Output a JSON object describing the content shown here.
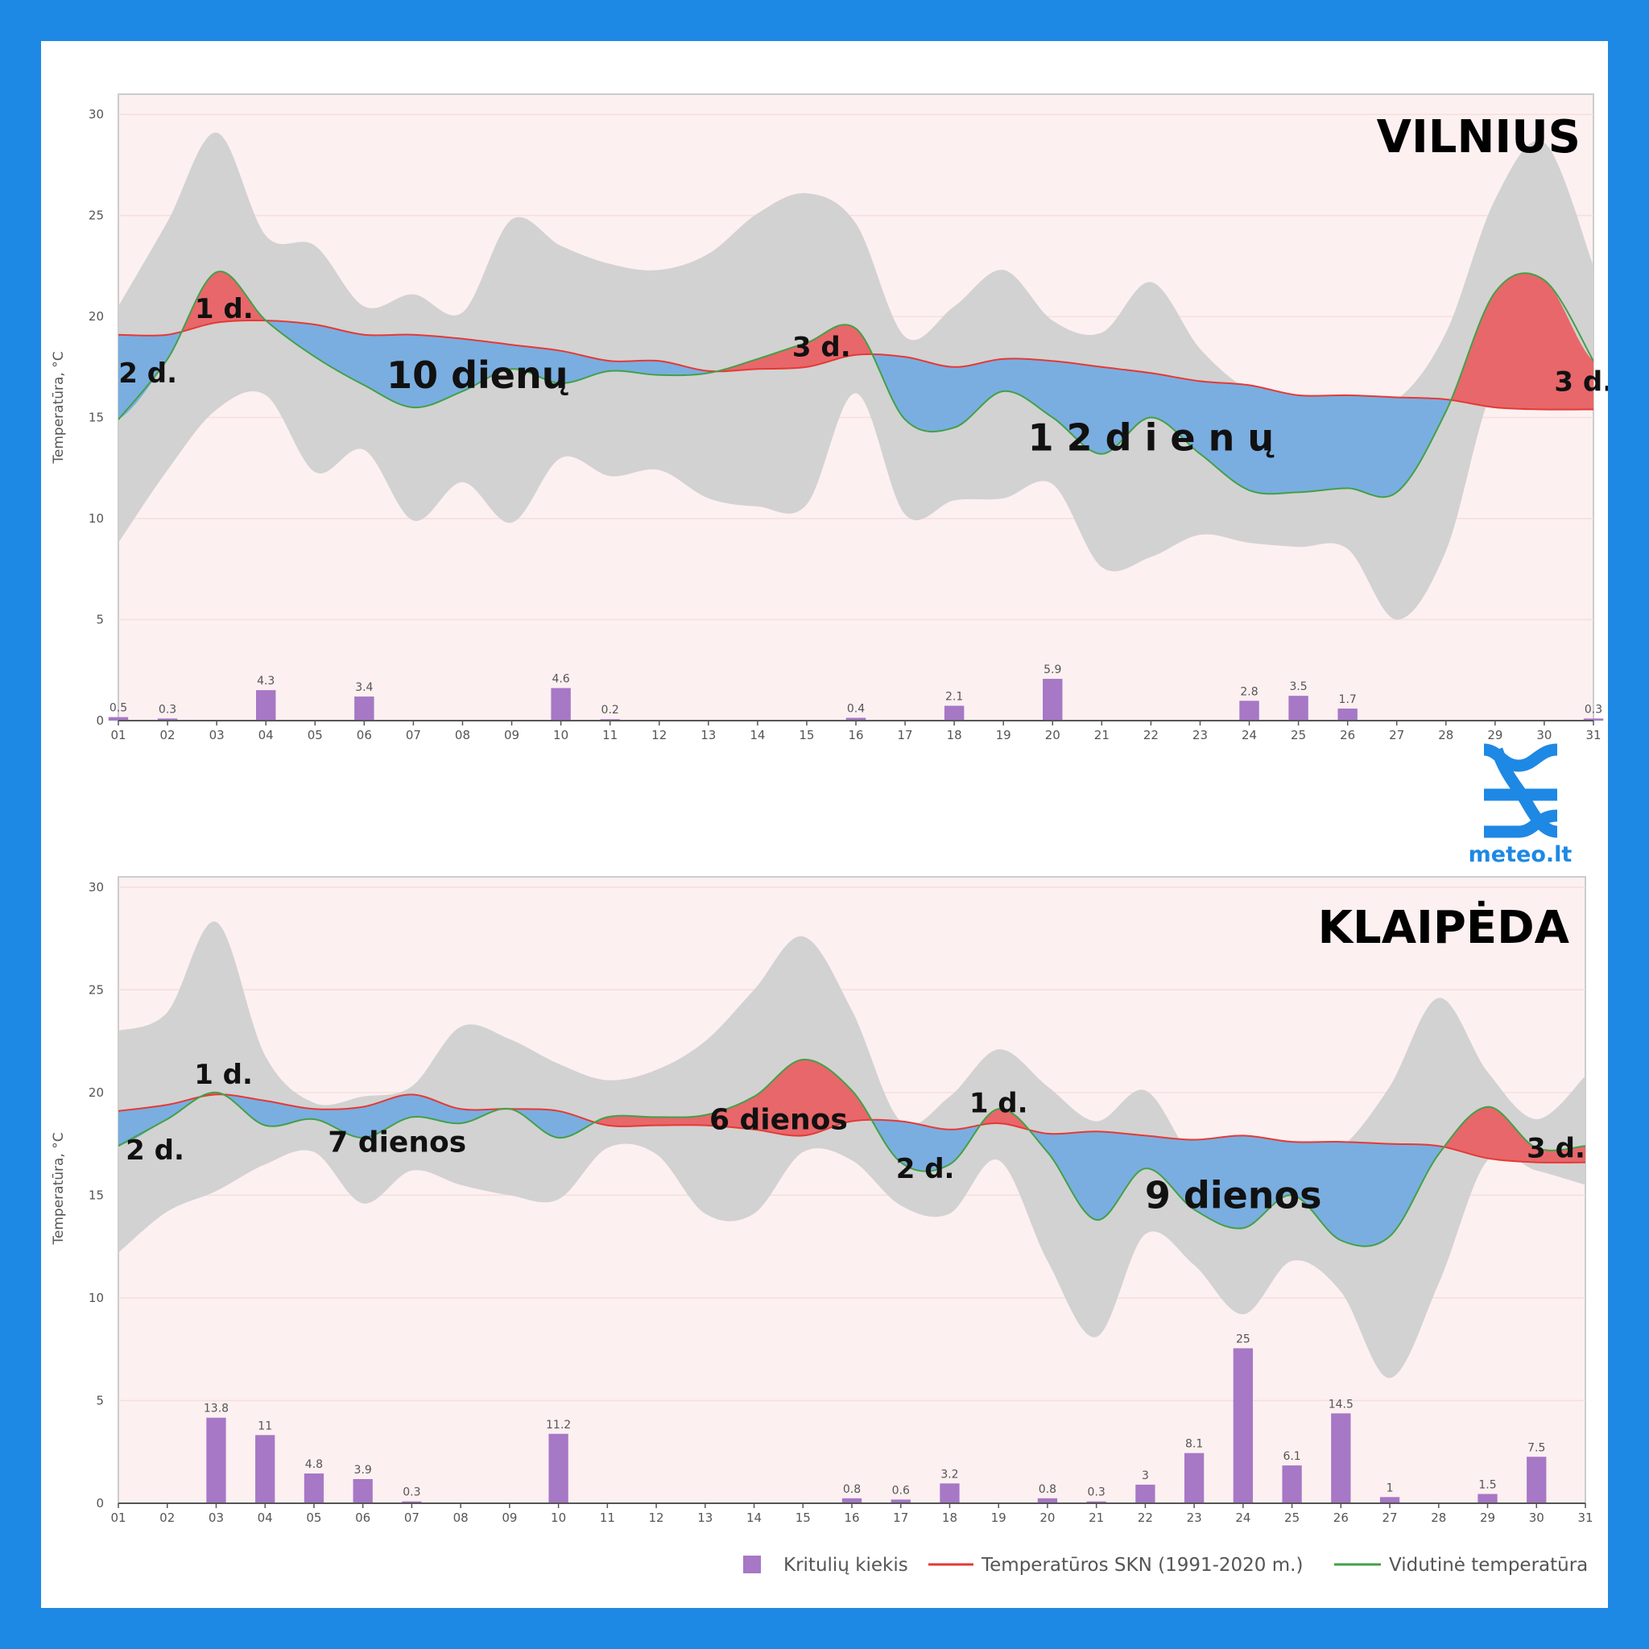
{
  "logo": {
    "text": "meteo.lt",
    "icon": "meteo-logo-icon",
    "color": "#1e88e5"
  },
  "legend": {
    "precip": "Kritulių kiekis",
    "norm": "Temperatūros SKN (1991-2020 m.)",
    "mean": "Vidutinė temperatūra"
  },
  "colors": {
    "frame": "#1e88e5",
    "plot_bg": "#fdf0f1",
    "range": "#d0d0d0",
    "warm": "#e8676a",
    "cold": "#7aaee0",
    "norm_line": "#e53935",
    "mean_line": "#43a047",
    "bar": "#a678c5"
  },
  "chart_data": [
    {
      "type": "area",
      "title": "VILNIUS",
      "ylabel": "Temperatūra, °C",
      "ylim": [
        0,
        31
      ],
      "yticks": [
        0,
        5,
        10,
        15,
        20,
        25,
        30
      ],
      "grid": true,
      "categories": [
        "01",
        "02",
        "03",
        "04",
        "05",
        "06",
        "07",
        "08",
        "09",
        "10",
        "11",
        "12",
        "13",
        "14",
        "15",
        "16",
        "17",
        "18",
        "19",
        "20",
        "21",
        "22",
        "23",
        "24",
        "25",
        "26",
        "27",
        "28",
        "29",
        "30",
        "31"
      ],
      "series": [
        {
          "name": "Vidutinė temperatūra",
          "type": "line",
          "values": [
            14.9,
            17.9,
            22.2,
            19.8,
            18.0,
            16.6,
            15.5,
            16.3,
            17.4,
            16.7,
            17.3,
            17.1,
            17.2,
            17.9,
            18.7,
            19.4,
            14.9,
            14.5,
            16.3,
            15.0,
            13.2,
            15.0,
            13.2,
            11.4,
            11.3,
            11.5,
            11.3,
            15.3,
            21.2,
            21.8,
            17.8
          ]
        },
        {
          "name": "Temperatūros SKN (1991-2020 m.)",
          "type": "line",
          "values": [
            19.1,
            19.1,
            19.7,
            19.8,
            19.6,
            19.1,
            19.1,
            18.9,
            18.6,
            18.3,
            17.8,
            17.8,
            17.3,
            17.4,
            17.5,
            18.1,
            18.0,
            17.5,
            17.9,
            17.8,
            17.5,
            17.2,
            16.8,
            16.6,
            16.1,
            16.1,
            16.0,
            15.9,
            15.5,
            15.4,
            15.4
          ]
        },
        {
          "name": "range",
          "type": "arearange",
          "high": [
            20.5,
            24.7,
            29.1,
            24.0,
            23.5,
            20.5,
            21.1,
            20.2,
            24.8,
            23.5,
            22.6,
            22.3,
            23.1,
            25.1,
            26.1,
            24.6,
            19.0,
            20.5,
            22.3,
            19.8,
            19.2,
            21.7,
            18.4,
            16.3,
            15.3,
            15.8,
            15.9,
            19.2,
            25.8,
            28.6,
            22.5
          ],
          "low": [
            8.8,
            12.4,
            15.4,
            16.1,
            12.3,
            13.4,
            9.9,
            11.8,
            9.8,
            13.0,
            12.1,
            12.4,
            11.0,
            10.6,
            10.7,
            16.2,
            10.2,
            10.9,
            11.0,
            11.7,
            7.6,
            8.1,
            9.2,
            8.8,
            8.6,
            8.5,
            5.0,
            8.4,
            16.6,
            16.1,
            16.3
          ]
        },
        {
          "name": "Kritulių kiekis",
          "type": "bar",
          "values": [
            0.5,
            0.3,
            0,
            4.3,
            0,
            3.4,
            0,
            0,
            0,
            4.6,
            0.2,
            0,
            0,
            0,
            0,
            0.4,
            0,
            2.1,
            0,
            5.9,
            0,
            0,
            0,
            2.8,
            3.5,
            1.7,
            0,
            0,
            0,
            0,
            0.3
          ],
          "labels": [
            "0.5",
            "0.3",
            "",
            "4.3",
            "",
            "3.4",
            "",
            "",
            "",
            "4.6",
            "0.2",
            "",
            "",
            "",
            "",
            "0.4",
            "",
            "2.1",
            "",
            "5.9",
            "",
            "",
            "",
            "2.8",
            "3.5",
            "1.7",
            "",
            "",
            "",
            "",
            "0.3"
          ]
        }
      ],
      "annotations": [
        {
          "text": "2 d.",
          "x": 1.6,
          "y": 17.2,
          "size": 34
        },
        {
          "text": "1 d.",
          "x": 3.15,
          "y": 20.4,
          "size": 34
        },
        {
          "text": "10 dienų",
          "x": 8.3,
          "y": 17.1,
          "size": 46
        },
        {
          "text": "3 d.",
          "x": 15.3,
          "y": 18.5,
          "size": 34
        },
        {
          "text": "1 2  d i e n ų",
          "x": 22.0,
          "y": 14.0,
          "size": 46
        },
        {
          "text": "3 d.",
          "x": 30.8,
          "y": 16.8,
          "size": 34
        }
      ]
    },
    {
      "type": "area",
      "title": "KLAIPĖDA",
      "ylabel": "Temperatūra, °C",
      "ylim": [
        0,
        30.5
      ],
      "yticks": [
        0,
        5,
        10,
        15,
        20,
        25,
        30
      ],
      "grid": true,
      "categories": [
        "01",
        "02",
        "03",
        "04",
        "05",
        "06",
        "07",
        "08",
        "09",
        "10",
        "11",
        "12",
        "13",
        "14",
        "15",
        "16",
        "17",
        "18",
        "19",
        "20",
        "21",
        "22",
        "23",
        "24",
        "25",
        "26",
        "27",
        "28",
        "29",
        "30",
        "31"
      ],
      "series": [
        {
          "name": "Vidutinė temperatūra",
          "type": "line",
          "values": [
            17.4,
            18.7,
            20.0,
            18.4,
            18.7,
            17.8,
            18.8,
            18.5,
            19.2,
            17.8,
            18.8,
            18.8,
            18.9,
            19.8,
            21.6,
            20.1,
            16.6,
            16.5,
            19.2,
            17.1,
            13.8,
            16.3,
            14.3,
            13.4,
            15.0,
            12.8,
            13.0,
            17.0,
            19.3,
            17.3,
            17.4
          ]
        },
        {
          "name": "Temperatūros SKN (1991-2020 m.)",
          "type": "line",
          "values": [
            19.1,
            19.4,
            19.9,
            19.6,
            19.2,
            19.3,
            19.9,
            19.2,
            19.2,
            19.1,
            18.4,
            18.4,
            18.4,
            18.2,
            17.9,
            18.6,
            18.6,
            18.2,
            18.5,
            18.0,
            18.1,
            17.9,
            17.7,
            17.9,
            17.6,
            17.6,
            17.5,
            17.4,
            16.8,
            16.6,
            16.6
          ]
        },
        {
          "name": "range",
          "type": "arearange",
          "high": [
            23.0,
            23.9,
            28.3,
            21.8,
            19.5,
            19.8,
            20.3,
            23.2,
            22.6,
            21.4,
            20.6,
            21.1,
            22.5,
            25.0,
            27.6,
            24.0,
            18.6,
            19.8,
            22.1,
            20.3,
            18.6,
            20.1,
            16.7,
            15.5,
            16.4,
            17.3,
            20.3,
            24.6,
            21.0,
            18.7,
            20.8
          ],
          "low": [
            12.2,
            14.2,
            15.2,
            16.5,
            17.1,
            14.6,
            16.2,
            15.5,
            15.0,
            14.8,
            17.3,
            17.0,
            14.1,
            14.1,
            17.1,
            16.7,
            14.5,
            14.1,
            16.7,
            11.8,
            8.1,
            13.1,
            11.6,
            9.2,
            11.8,
            10.3,
            6.1,
            10.7,
            16.7,
            16.2,
            15.5
          ]
        },
        {
          "name": "Kritulių kiekis",
          "type": "bar",
          "values": [
            0,
            0,
            13.8,
            11,
            4.8,
            3.9,
            0.3,
            0,
            0,
            11.2,
            0,
            0,
            0,
            0,
            0,
            0.8,
            0.6,
            3.2,
            0,
            0.8,
            0.3,
            3,
            8.1,
            25,
            6.1,
            14.5,
            1,
            0,
            1.5,
            7.5,
            0
          ],
          "labels": [
            "",
            "",
            "13.8",
            "11",
            "4.8",
            "3.9",
            "0.3",
            "",
            "",
            "11.2",
            "",
            "",
            "",
            "",
            "",
            "0.8",
            "0.6",
            "3.2",
            "",
            "0.8",
            "0.3",
            "3",
            "8.1",
            "25",
            "6.1",
            "14.5",
            "1",
            "",
            "1.5",
            "7.5",
            ""
          ]
        }
      ],
      "annotations": [
        {
          "text": "2 d.",
          "x": 1.75,
          "y": 17.2,
          "size": 34
        },
        {
          "text": "1 d.",
          "x": 3.15,
          "y": 20.9,
          "size": 34
        },
        {
          "text": "7 dienos",
          "x": 6.7,
          "y": 17.6,
          "size": 36
        },
        {
          "text": "6 dienos",
          "x": 14.5,
          "y": 18.7,
          "size": 36
        },
        {
          "text": "2 d.",
          "x": 17.5,
          "y": 16.3,
          "size": 34
        },
        {
          "text": "1 d.",
          "x": 19.0,
          "y": 19.5,
          "size": 34
        },
        {
          "text": "9 dienos",
          "x": 23.8,
          "y": 15.0,
          "size": 46
        },
        {
          "text": "3 d.",
          "x": 30.4,
          "y": 17.3,
          "size": 34
        }
      ]
    }
  ]
}
